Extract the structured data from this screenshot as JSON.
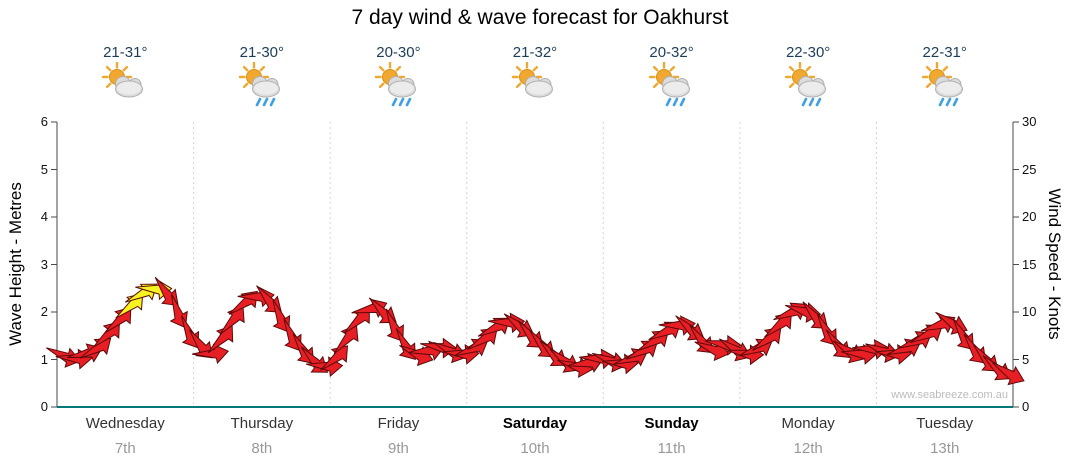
{
  "title": "7 day wind & wave forecast for Oakhurst",
  "watermark": "www.seabreeze.com.au",
  "left_axis": {
    "label": "Wave Height - Metres",
    "ticks": [
      0,
      1,
      2,
      3,
      4,
      5,
      6
    ],
    "min": 0,
    "max": 6
  },
  "right_axis": {
    "label": "Wind Speed - Knots",
    "ticks": [
      0,
      5,
      10,
      15,
      20,
      25,
      30
    ],
    "min": 0,
    "max": 30
  },
  "colors": {
    "arrow_red": "#e81e25",
    "arrow_yellow": "#f6f320",
    "arrow_outline": "#5a0a0a",
    "axis_line": "#4a4a4a",
    "bottom_axis": "#007878",
    "grid_dotted": "#d4d4d4",
    "sun": "#f0a830",
    "cloud": "#dcdcdc",
    "cloud_edge": "#b0b0b0",
    "rain_drop": "#3da0e8"
  },
  "chart_data": {
    "type": "wind-arrow-series",
    "title": "7 day wind & wave forecast for Oakhurst",
    "categories": [
      "Wednesday",
      "Thursday",
      "Friday",
      "Saturday",
      "Sunday",
      "Monday",
      "Tuesday"
    ],
    "dates": [
      "7th",
      "8th",
      "9th",
      "10th",
      "11th",
      "12th",
      "13th"
    ],
    "temps": [
      "21-31°",
      "21-30°",
      "20-30°",
      "21-32°",
      "20-32°",
      "22-30°",
      "22-31°"
    ],
    "weather_icons": [
      "partly-cloudy",
      "showers",
      "showers",
      "partly-cloudy",
      "showers",
      "showers",
      "showers"
    ],
    "weekend_days": [
      "Saturday",
      "Sunday"
    ],
    "y_left": {
      "label": "Wave Height - Metres",
      "range": [
        0,
        6
      ],
      "unit": "metres"
    },
    "y_right": {
      "label": "Wind Speed - Knots",
      "range": [
        0,
        30
      ],
      "unit": "knots"
    },
    "points_per_day": 12,
    "wind_speed_knots": [
      [
        5.3,
        5.0,
        5.5,
        6.0,
        7.5,
        9.0,
        10.5,
        11.8,
        12.3,
        12.0,
        10.0,
        7.8
      ],
      [
        6.5,
        5.5,
        7.0,
        9.0,
        10.8,
        11.5,
        11.2,
        9.5,
        7.5,
        6.0,
        4.8,
        4.2
      ],
      [
        5.0,
        7.0,
        9.0,
        10.2,
        10.0,
        8.5,
        6.5,
        5.5,
        5.8,
        6.2,
        5.8,
        5.5
      ],
      [
        6.0,
        7.0,
        8.2,
        8.8,
        8.5,
        7.5,
        6.5,
        5.5,
        4.8,
        4.2,
        4.5,
        5.0
      ],
      [
        4.8,
        4.5,
        5.0,
        5.8,
        6.8,
        7.8,
        8.5,
        8.2,
        7.0,
        6.0,
        6.5,
        6.0
      ],
      [
        5.5,
        6.0,
        7.0,
        8.5,
        9.8,
        10.0,
        9.5,
        8.0,
        6.5,
        5.8,
        5.5,
        6.0
      ],
      [
        5.8,
        5.5,
        6.0,
        6.8,
        7.5,
        8.5,
        8.8,
        7.5,
        6.0,
        5.0,
        4.0,
        3.5
      ]
    ],
    "strong_wind_yellow_points": [
      [
        0,
        6
      ],
      [
        0,
        7
      ],
      [
        0,
        8
      ]
    ],
    "legend": "none",
    "grid": "vertical dotted day separators"
  }
}
